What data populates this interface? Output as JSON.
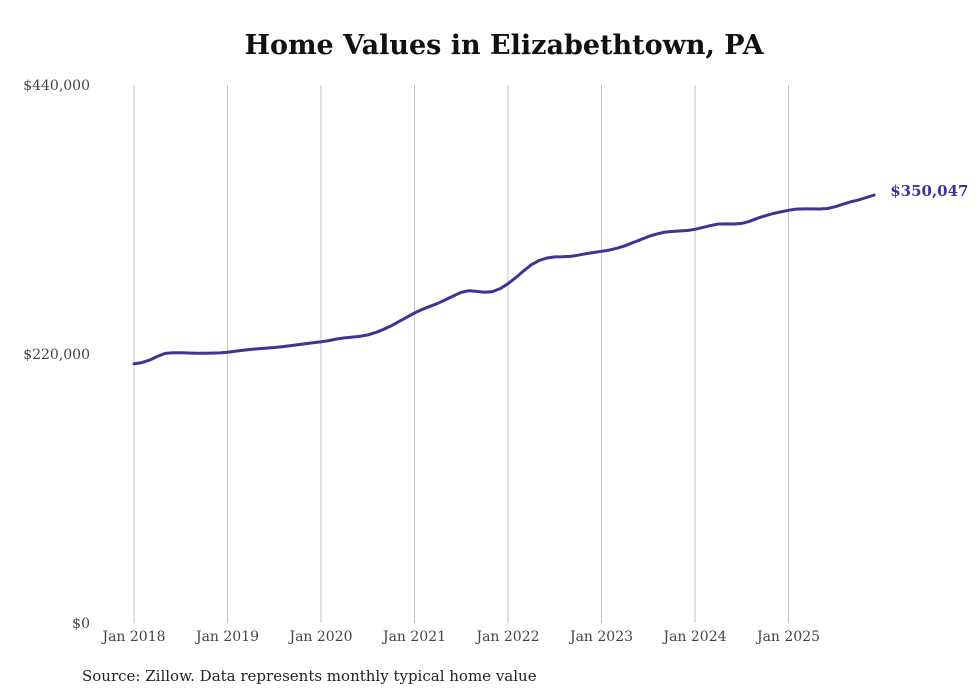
{
  "chart_data": {
    "type": "line",
    "title": "Home Values in Elizabethtown, PA",
    "source": "Source: Zillow. Data represents monthly typical home value",
    "xlabel": "",
    "ylabel": "",
    "ylim": [
      0,
      440000
    ],
    "y_ticks": [
      0,
      220000,
      440000
    ],
    "y_tick_labels": [
      "$0",
      "$220,000",
      "$440,000"
    ],
    "x_tick_labels": [
      "Jan 2018",
      "Jan 2019",
      "Jan 2020",
      "Jan 2021",
      "Jan 2022",
      "Jan 2023",
      "Jan 2024",
      "Jan 2025"
    ],
    "grid": "vertical",
    "start": "Jan 2018",
    "frequency": "monthly",
    "end_label": "$350,047",
    "line_color": "#3b3594",
    "series": [
      {
        "name": "Typical home value",
        "values": [
          212000,
          213000,
          215000,
          218000,
          220500,
          221000,
          221000,
          220800,
          220600,
          220600,
          220700,
          220900,
          221500,
          222300,
          223000,
          223800,
          224300,
          224800,
          225300,
          226000,
          226800,
          227600,
          228400,
          229200,
          230000,
          231000,
          232300,
          233200,
          233800,
          234500,
          235600,
          237500,
          240000,
          243000,
          246500,
          250000,
          253500,
          256500,
          259000,
          261500,
          264500,
          267500,
          270500,
          271800,
          271200,
          270500,
          271000,
          273500,
          277500,
          282500,
          288000,
          293000,
          296500,
          298500,
          299400,
          299500,
          299800,
          300800,
          302000,
          303000,
          304000,
          305000,
          306500,
          308500,
          311000,
          313500,
          316000,
          318000,
          319500,
          320200,
          320600,
          321000,
          322000,
          323500,
          325000,
          326300,
          326400,
          326300,
          326800,
          328500,
          331000,
          333000,
          334800,
          336200,
          337500,
          338500,
          338700,
          338700,
          338600,
          339000,
          340500,
          342500,
          344500,
          346000,
          348000,
          350047
        ]
      }
    ]
  }
}
